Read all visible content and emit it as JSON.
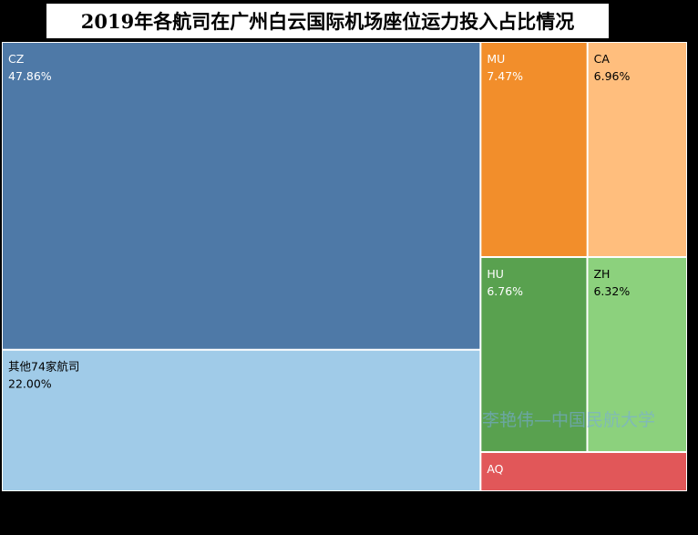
{
  "title": "2019年各航司在广州白云国际机场座位运力投入占比情况",
  "watermark": "李艳伟—中国民航大学",
  "chart_data": {
    "type": "treemap",
    "title": "2019年各航司在广州白云国际机场座位运力投入占比情况",
    "unit": "%",
    "items": [
      {
        "name": "CZ",
        "value": 47.86,
        "label": "47.86%",
        "color": "#4e79a7",
        "text_color": "#ffffff"
      },
      {
        "name": "其他74家航司",
        "value": 22.0,
        "label": "22.00%",
        "color": "#a0cbe8",
        "text_color": "#000000"
      },
      {
        "name": "MU",
        "value": 7.47,
        "label": "7.47%",
        "color": "#f28e2b",
        "text_color": "#ffffff"
      },
      {
        "name": "CA",
        "value": 6.96,
        "label": "6.96%",
        "color": "#ffbe7d",
        "text_color": "#000000"
      },
      {
        "name": "HU",
        "value": 6.76,
        "label": "6.76%",
        "color": "#59a14f",
        "text_color": "#ffffff"
      },
      {
        "name": "ZH",
        "value": 6.32,
        "label": "6.32%",
        "color": "#8cd17d",
        "text_color": "#000000"
      },
      {
        "name": "AQ",
        "value": 2.63,
        "label": "",
        "color": "#e15759",
        "text_color": "#ffffff"
      }
    ]
  }
}
